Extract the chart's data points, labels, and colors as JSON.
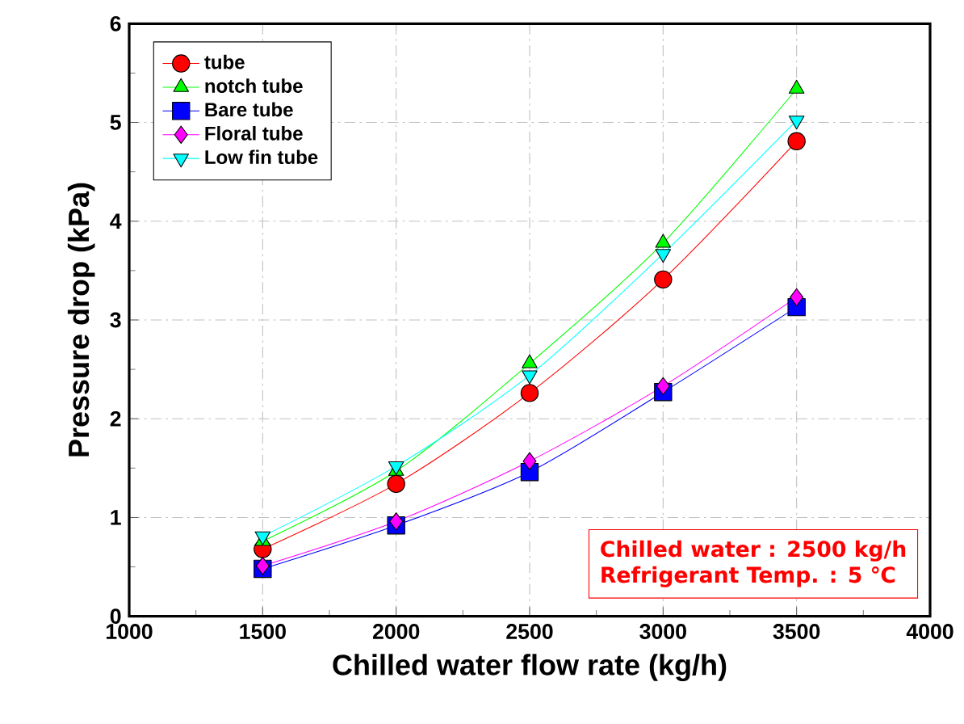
{
  "chart_data": {
    "type": "line",
    "xlabel": "Chilled water flow rate (kg/h)",
    "ylabel": "Pressure drop (kPa)",
    "x": [
      1500,
      2000,
      2500,
      3000,
      3500
    ],
    "series": [
      {
        "name": "tube",
        "color": "#ff0000",
        "marker": "circle",
        "values": [
          0.68,
          1.34,
          2.26,
          3.41,
          4.81
        ]
      },
      {
        "name": "notch tube",
        "color": "#00ff00",
        "marker": "triangle",
        "values": [
          0.76,
          1.47,
          2.56,
          3.78,
          5.34
        ]
      },
      {
        "name": "Bare tube",
        "color": "#0000ff",
        "marker": "square",
        "values": [
          0.48,
          0.92,
          1.46,
          2.27,
          3.13
        ]
      },
      {
        "name": "Floral tube",
        "color": "#ff00ff",
        "marker": "diamond",
        "values": [
          0.51,
          0.96,
          1.57,
          2.33,
          3.23
        ]
      },
      {
        "name": "Low fin tube",
        "color": "#00ffff",
        "marker": "triangle-down",
        "values": [
          0.81,
          1.52,
          2.44,
          3.67,
          5.02
        ]
      }
    ],
    "xlim": [
      1000,
      4000
    ],
    "xticks": [
      1000,
      1500,
      2000,
      2500,
      3000,
      3500,
      4000
    ],
    "ylim": [
      0,
      6
    ],
    "yticks": [
      0,
      1,
      2,
      3,
      4,
      5,
      6
    ],
    "grid": true,
    "legend": "top left",
    "line_style": "solid",
    "annotations": [
      "Chilled water : 2500 kg/h",
      "Refrigerant Temp. : 5 ℃"
    ]
  }
}
